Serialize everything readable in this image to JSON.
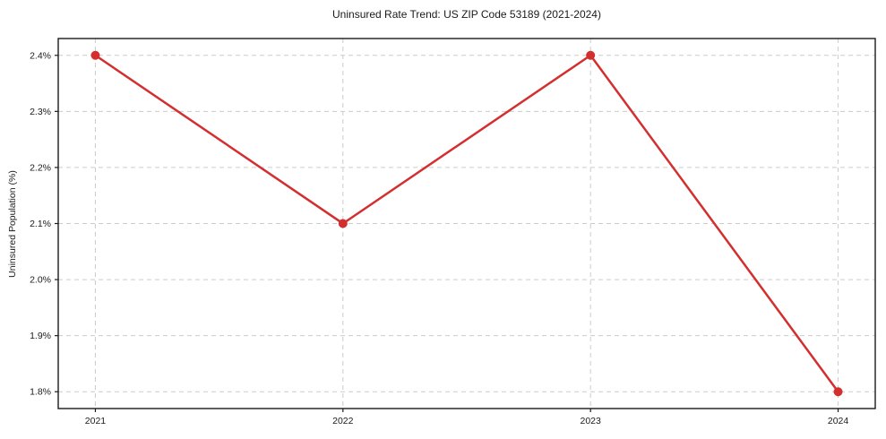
{
  "chart_data": {
    "type": "line",
    "title": "Uninsured Rate Trend: US ZIP Code 53189 (2021-2024)",
    "xlabel": "",
    "ylabel": "Uninsured Population (%)",
    "x": [
      2021,
      2022,
      2023,
      2024
    ],
    "x_tick_labels": [
      "2021",
      "2022",
      "2023",
      "2024"
    ],
    "series": [
      {
        "name": "uninsured-rate",
        "values": [
          2.4,
          2.1,
          2.4,
          1.8
        ]
      }
    ],
    "y_ticks": [
      1.8,
      1.9,
      2.0,
      2.1,
      2.2,
      2.3,
      2.4
    ],
    "y_tick_labels": [
      "1.8%",
      "1.9%",
      "2.0%",
      "2.1%",
      "2.2%",
      "2.3%",
      "2.4%"
    ],
    "xlim": [
      2020.85,
      2024.15
    ],
    "ylim": [
      1.77,
      2.43
    ],
    "grid": true,
    "grid_style": "dashed",
    "legend": "none",
    "marker": "circle",
    "colors": {
      "line": "#d32f2f",
      "marker": "#d32f2f",
      "grid": "#cccccc",
      "axis": "#1a1a1a",
      "text": "#1a1a1a",
      "background": "#ffffff"
    }
  }
}
